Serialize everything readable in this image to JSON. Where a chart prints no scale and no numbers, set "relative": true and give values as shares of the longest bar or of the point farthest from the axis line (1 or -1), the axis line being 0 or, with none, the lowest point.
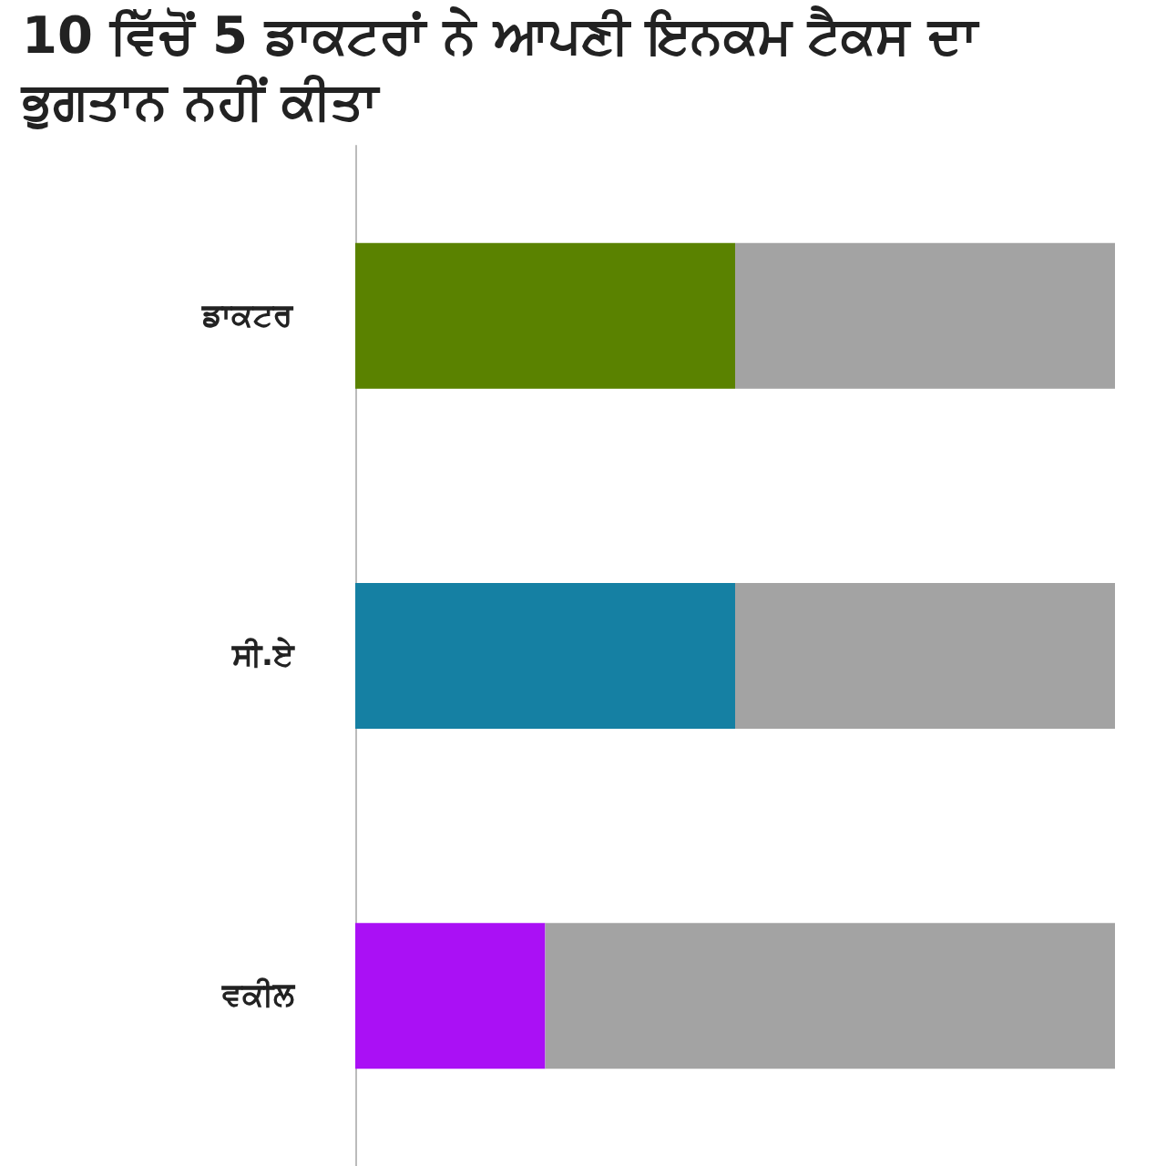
{
  "chart_data": {
    "type": "bar",
    "orientation": "horizontal",
    "stacked": true,
    "relative": true,
    "title": "10 ਵਿੱਚੋਂ 5 ਡਾਕਟਰਾਂ ਨੇ ਆਪਣੀ ਇਨਕਮ ਟੈਕਸ ਦਾ ਭੁਗਤਾਨ ਨਹੀਂ ਕੀਤਾ",
    "categories": [
      "ਡਾਕਟਰ",
      "ਸੀ.ਏ",
      "ਵਕੀਲ"
    ],
    "series": [
      {
        "colors": [
          "#5a8200",
          "#1580a3",
          "#aa10f5"
        ],
        "values": [
          0.5,
          0.5,
          0.25
        ]
      },
      {
        "color": "#a3a3a3",
        "values": [
          0.5,
          0.5,
          0.75
        ]
      }
    ]
  }
}
